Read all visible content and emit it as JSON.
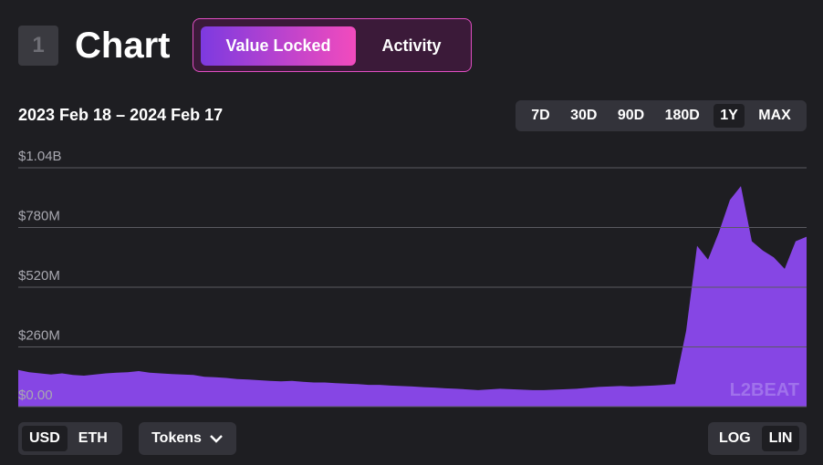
{
  "header": {
    "number": "1",
    "title": "Chart",
    "tabs": [
      "Value Locked",
      "Activity"
    ]
  },
  "date_range": "2023 Feb 18 – 2024 Feb 17",
  "ranges": [
    "7D",
    "30D",
    "90D",
    "180D",
    "1Y",
    "MAX"
  ],
  "chart_data": {
    "type": "area",
    "color": "#8646e4",
    "ylim": [
      0,
      1040000000
    ],
    "yticks": [
      {
        "value": 0,
        "label": "$0.00"
      },
      {
        "value": 260000000,
        "label": "$260M"
      },
      {
        "value": 520000000,
        "label": "$520M"
      },
      {
        "value": 780000000,
        "label": "$780M"
      },
      {
        "value": 1040000000,
        "label": "$1.04B"
      }
    ],
    "grid": true,
    "watermark": "L2BEAT",
    "values": [
      160000000,
      150000000,
      145000000,
      140000000,
      145000000,
      138000000,
      135000000,
      140000000,
      145000000,
      148000000,
      150000000,
      155000000,
      148000000,
      145000000,
      142000000,
      140000000,
      138000000,
      130000000,
      128000000,
      125000000,
      120000000,
      118000000,
      115000000,
      112000000,
      110000000,
      112000000,
      108000000,
      105000000,
      105000000,
      102000000,
      100000000,
      98000000,
      95000000,
      95000000,
      92000000,
      90000000,
      88000000,
      85000000,
      83000000,
      80000000,
      78000000,
      75000000,
      72000000,
      75000000,
      78000000,
      76000000,
      74000000,
      72000000,
      72000000,
      74000000,
      76000000,
      78000000,
      82000000,
      86000000,
      88000000,
      90000000,
      88000000,
      90000000,
      92000000,
      95000000,
      98000000,
      330000000,
      700000000,
      640000000,
      760000000,
      900000000,
      960000000,
      720000000,
      680000000,
      650000000,
      600000000,
      720000000,
      740000000
    ]
  },
  "controls": {
    "currency": [
      "USD",
      "ETH"
    ],
    "tokens": "Tokens",
    "scale": [
      "LOG",
      "LIN"
    ]
  }
}
